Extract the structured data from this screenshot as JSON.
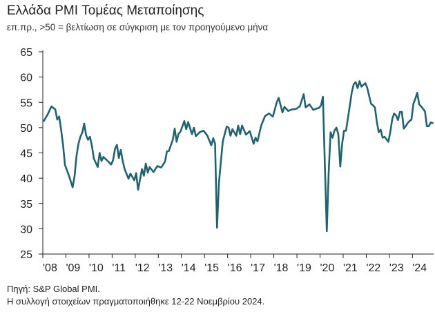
{
  "title": "Ελλάδα PMI Τομέας Μεταποίησης",
  "subtitle": "επ.πρ., >50 = βελτίωση σε σύγκριση με τον προηγούμενο μήνα",
  "source": "Πηγή: S&P Global PMI.",
  "collection_note": "Η συλλογή στοιχείων πραγματοποιήθηκε 12-22 Νοεμβρίου 2024.",
  "colors": {
    "line": "#1d6470",
    "axis": "#222222"
  },
  "chart_data": {
    "type": "line",
    "title": "Ελλάδα PMI Τομέας Μεταποίησης",
    "xlabel": "",
    "ylabel": "",
    "ylim": [
      25,
      65
    ],
    "yticks": [
      25,
      30,
      35,
      40,
      45,
      50,
      55,
      60,
      65
    ],
    "xlim": [
      "2008-01",
      "2024-11"
    ],
    "grid": false,
    "xtick_labels": [
      "'08",
      "'09",
      "'10",
      "'11",
      "'12",
      "'13",
      "'14",
      "'15",
      "'16",
      "'17",
      "'18",
      "'19",
      "'20",
      "'21",
      "'22",
      "'23",
      "'24"
    ],
    "series": [
      {
        "points": [
          [
            "2008-01",
            51.3
          ],
          [
            "2008-03",
            52.6
          ],
          [
            "2008-05",
            54.2
          ],
          [
            "2008-07",
            53.6
          ],
          [
            "2008-08",
            51.6
          ],
          [
            "2008-09",
            52.2
          ],
          [
            "2008-10",
            49.6
          ],
          [
            "2008-11",
            46.6
          ],
          [
            "2008-12",
            42.6
          ],
          [
            "2009-02",
            40.6
          ],
          [
            "2009-04",
            38.2
          ],
          [
            "2009-05",
            40.4
          ],
          [
            "2009-06",
            44.4
          ],
          [
            "2009-07",
            46.8
          ],
          [
            "2009-08",
            48.2
          ],
          [
            "2009-09",
            49.0
          ],
          [
            "2009-10",
            50.8
          ],
          [
            "2009-11",
            48.5
          ],
          [
            "2009-12",
            47.6
          ],
          [
            "2010-01",
            48.2
          ],
          [
            "2010-02",
            46.4
          ],
          [
            "2010-03",
            43.9
          ],
          [
            "2010-05",
            42.2
          ],
          [
            "2010-06",
            45.0
          ],
          [
            "2010-07",
            43.4
          ],
          [
            "2010-08",
            44.2
          ],
          [
            "2010-10",
            43.5
          ],
          [
            "2010-12",
            42.7
          ],
          [
            "2011-01",
            43.6
          ],
          [
            "2011-02",
            45.8
          ],
          [
            "2011-03",
            46.6
          ],
          [
            "2011-04",
            44.0
          ],
          [
            "2011-05",
            45.6
          ],
          [
            "2011-06",
            43.4
          ],
          [
            "2011-07",
            41.8
          ],
          [
            "2011-09",
            39.9
          ],
          [
            "2011-10",
            40.9
          ],
          [
            "2011-12",
            39.6
          ],
          [
            "2012-01",
            41.0
          ],
          [
            "2012-02",
            37.7
          ],
          [
            "2012-04",
            41.8
          ],
          [
            "2012-05",
            40.5
          ],
          [
            "2012-06",
            42.9
          ],
          [
            "2012-07",
            41.1
          ],
          [
            "2012-08",
            42.2
          ],
          [
            "2012-10",
            41.2
          ],
          [
            "2012-12",
            42.4
          ],
          [
            "2013-02",
            42.1
          ],
          [
            "2013-04",
            43.3
          ],
          [
            "2013-05",
            45.3
          ],
          [
            "2013-06",
            45.4
          ],
          [
            "2013-08",
            47.6
          ],
          [
            "2013-09",
            49.8
          ],
          [
            "2013-10",
            47.2
          ],
          [
            "2013-11",
            48.8
          ],
          [
            "2013-12",
            49.2
          ],
          [
            "2014-02",
            51.3
          ],
          [
            "2014-03",
            49.7
          ],
          [
            "2014-04",
            51.1
          ],
          [
            "2014-06",
            48.7
          ],
          [
            "2014-07",
            50.0
          ],
          [
            "2014-08",
            48.3
          ],
          [
            "2014-10",
            49.1
          ],
          [
            "2014-12",
            49.4
          ],
          [
            "2015-02",
            48.4
          ],
          [
            "2015-04",
            46.5
          ],
          [
            "2015-05",
            47.9
          ],
          [
            "2015-06",
            46.8
          ],
          [
            "2015-07",
            30.2
          ],
          [
            "2015-08",
            39.1
          ],
          [
            "2015-09",
            43.3
          ],
          [
            "2015-10",
            47.3
          ],
          [
            "2015-12",
            50.2
          ],
          [
            "2016-01",
            50.0
          ],
          [
            "2016-02",
            48.4
          ],
          [
            "2016-03",
            49.7
          ],
          [
            "2016-05",
            48.4
          ],
          [
            "2016-06",
            50.4
          ],
          [
            "2016-07",
            48.7
          ],
          [
            "2016-08",
            50.4
          ],
          [
            "2016-10",
            48.6
          ],
          [
            "2016-12",
            49.3
          ],
          [
            "2017-02",
            46.8
          ],
          [
            "2017-03",
            48.0
          ],
          [
            "2017-04",
            47.3
          ],
          [
            "2017-06",
            50.5
          ],
          [
            "2017-08",
            52.3
          ],
          [
            "2017-10",
            52.8
          ],
          [
            "2017-12",
            52.2
          ],
          [
            "2018-02",
            55.0
          ],
          [
            "2018-03",
            55.9
          ],
          [
            "2018-05",
            53.0
          ],
          [
            "2018-06",
            54.1
          ],
          [
            "2018-08",
            53.3
          ],
          [
            "2018-10",
            53.6
          ],
          [
            "2018-12",
            53.7
          ],
          [
            "2019-02",
            54.2
          ],
          [
            "2019-04",
            56.6
          ],
          [
            "2019-05",
            54.0
          ],
          [
            "2019-07",
            54.6
          ],
          [
            "2019-09",
            53.5
          ],
          [
            "2019-11",
            53.8
          ],
          [
            "2019-12",
            53.9
          ],
          [
            "2020-01",
            54.4
          ],
          [
            "2020-02",
            56.1
          ],
          [
            "2020-03",
            42.5
          ],
          [
            "2020-04",
            29.5
          ],
          [
            "2020-05",
            41.1
          ],
          [
            "2020-06",
            49.1
          ],
          [
            "2020-07",
            48.0
          ],
          [
            "2020-08",
            49.4
          ],
          [
            "2020-09",
            50.0
          ],
          [
            "2020-10",
            48.7
          ],
          [
            "2020-11",
            42.3
          ],
          [
            "2020-12",
            46.9
          ],
          [
            "2021-01",
            49.4
          ],
          [
            "2021-02",
            49.4
          ],
          [
            "2021-04",
            54.4
          ],
          [
            "2021-05",
            57.0
          ],
          [
            "2021-06",
            58.6
          ],
          [
            "2021-07",
            59.0
          ],
          [
            "2021-08",
            57.8
          ],
          [
            "2021-09",
            59.2
          ],
          [
            "2021-10",
            58.1
          ],
          [
            "2021-12",
            58.8
          ],
          [
            "2022-01",
            57.9
          ],
          [
            "2022-03",
            54.7
          ],
          [
            "2022-04",
            54.4
          ],
          [
            "2022-05",
            54.0
          ],
          [
            "2022-06",
            51.2
          ],
          [
            "2022-07",
            49.1
          ],
          [
            "2022-08",
            49.6
          ],
          [
            "2022-09",
            48.0
          ],
          [
            "2022-10",
            48.2
          ],
          [
            "2022-12",
            47.2
          ],
          [
            "2023-01",
            49.2
          ],
          [
            "2023-02",
            51.7
          ],
          [
            "2023-03",
            52.8
          ],
          [
            "2023-04",
            52.4
          ],
          [
            "2023-05",
            51.5
          ],
          [
            "2023-06",
            53.1
          ],
          [
            "2023-07",
            53.1
          ],
          [
            "2023-08",
            49.8
          ],
          [
            "2023-09",
            50.3
          ],
          [
            "2023-10",
            50.9
          ],
          [
            "2023-11",
            51.3
          ],
          [
            "2023-12",
            51.6
          ],
          [
            "2024-01",
            54.7
          ],
          [
            "2024-02",
            55.7
          ],
          [
            "2024-03",
            56.9
          ],
          [
            "2024-04",
            54.6
          ],
          [
            "2024-05",
            54.2
          ],
          [
            "2024-06",
            53.7
          ],
          [
            "2024-07",
            53.2
          ],
          [
            "2024-08",
            50.3
          ],
          [
            "2024-09",
            50.3
          ],
          [
            "2024-10",
            51.0
          ],
          [
            "2024-11",
            50.9
          ]
        ]
      }
    ]
  }
}
